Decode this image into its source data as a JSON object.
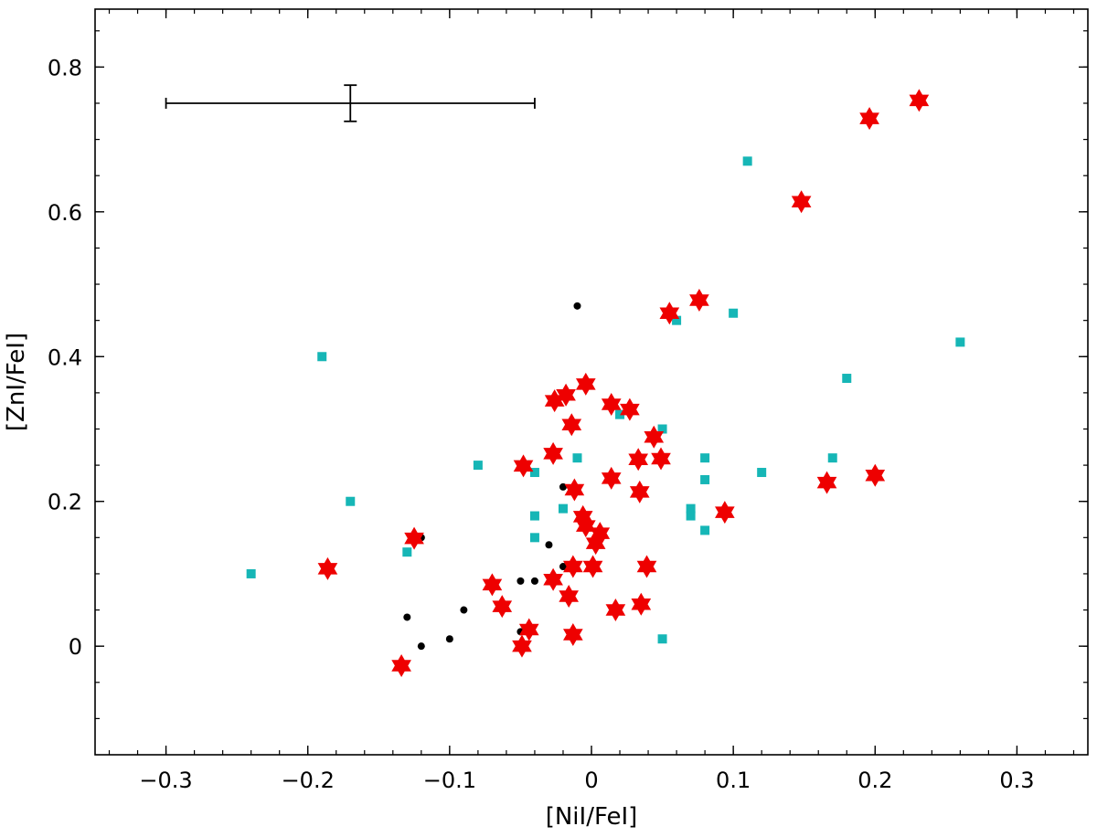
{
  "chart_data": {
    "type": "scatter",
    "title": "",
    "xlabel": "[NiI/FeI]",
    "ylabel": "[ZnI/FeI]",
    "xlim": [
      -0.35,
      0.35
    ],
    "ylim": [
      -0.15,
      0.88
    ],
    "xticks": [
      -0.3,
      -0.2,
      -0.1,
      0,
      0.1,
      0.2,
      0.3
    ],
    "xtick_labels": [
      "−0.3",
      "−0.2",
      "−0.1",
      "0",
      "0.1",
      "0.2",
      "0.3"
    ],
    "yticks": [
      0,
      0.2,
      0.4,
      0.6,
      0.8
    ],
    "ytick_labels": [
      "0",
      "0.2",
      "0.4",
      "0.6",
      "0.8"
    ],
    "x_minor_step": 0.02,
    "y_minor_step": 0.05,
    "grid": false,
    "error_bar": {
      "x": -0.17,
      "y": 0.75,
      "xerr_minus": 0.13,
      "xerr_plus": 0.13,
      "yerr": 0.025
    },
    "series": [
      {
        "marker": "circle",
        "color": "#000000",
        "points": [
          [
            -0.12,
            0.15
          ],
          [
            -0.13,
            0.04
          ],
          [
            -0.12,
            0.0
          ],
          [
            -0.1,
            0.01
          ],
          [
            -0.09,
            0.05
          ],
          [
            -0.05,
            0.09
          ],
          [
            -0.04,
            0.09
          ],
          [
            -0.05,
            0.02
          ],
          [
            -0.03,
            0.14
          ],
          [
            -0.02,
            0.11
          ],
          [
            -0.02,
            0.22
          ],
          [
            -0.01,
            0.47
          ]
        ]
      },
      {
        "marker": "square",
        "color": "#16b6b6",
        "points": [
          [
            -0.24,
            0.1
          ],
          [
            -0.19,
            0.4
          ],
          [
            -0.17,
            0.2
          ],
          [
            -0.13,
            0.13
          ],
          [
            -0.08,
            0.25
          ],
          [
            -0.04,
            0.24
          ],
          [
            -0.04,
            0.18
          ],
          [
            -0.04,
            0.15
          ],
          [
            -0.02,
            0.19
          ],
          [
            -0.01,
            0.26
          ],
          [
            0.02,
            0.32
          ],
          [
            0.05,
            0.3
          ],
          [
            0.05,
            0.01
          ],
          [
            0.06,
            0.45
          ],
          [
            0.07,
            0.19
          ],
          [
            0.07,
            0.18
          ],
          [
            0.08,
            0.26
          ],
          [
            0.08,
            0.23
          ],
          [
            0.08,
            0.16
          ],
          [
            0.1,
            0.46
          ],
          [
            0.11,
            0.67
          ],
          [
            0.12,
            0.24
          ],
          [
            0.17,
            0.26
          ],
          [
            0.18,
            0.37
          ],
          [
            0.26,
            0.42
          ]
        ]
      },
      {
        "marker": "star",
        "color": "#ee0000",
        "points": [
          [
            0.231,
            0.754
          ],
          [
            0.196,
            0.729
          ],
          [
            0.148,
            0.614
          ],
          [
            0.076,
            0.478
          ],
          [
            0.055,
            0.46
          ],
          [
            -0.004,
            0.362
          ],
          [
            -0.018,
            0.347
          ],
          [
            -0.026,
            0.339
          ],
          [
            0.014,
            0.334
          ],
          [
            0.027,
            0.327
          ],
          [
            -0.014,
            0.306
          ],
          [
            0.044,
            0.289
          ],
          [
            -0.027,
            0.266
          ],
          [
            0.033,
            0.258
          ],
          [
            0.049,
            0.259
          ],
          [
            -0.048,
            0.249
          ],
          [
            0.014,
            0.232
          ],
          [
            0.166,
            0.226
          ],
          [
            0.2,
            0.236
          ],
          [
            -0.012,
            0.216
          ],
          [
            0.034,
            0.213
          ],
          [
            0.094,
            0.185
          ],
          [
            -0.006,
            0.179
          ],
          [
            -0.004,
            0.166
          ],
          [
            0.006,
            0.156
          ],
          [
            0.003,
            0.142
          ],
          [
            -0.125,
            0.149
          ],
          [
            -0.186,
            0.107
          ],
          [
            -0.013,
            0.11
          ],
          [
            0.001,
            0.11
          ],
          [
            0.039,
            0.11
          ],
          [
            -0.07,
            0.085
          ],
          [
            -0.027,
            0.092
          ],
          [
            -0.016,
            0.069
          ],
          [
            -0.063,
            0.055
          ],
          [
            0.017,
            0.05
          ],
          [
            0.035,
            0.058
          ],
          [
            -0.044,
            0.023
          ],
          [
            -0.013,
            0.016
          ],
          [
            -0.049,
            0.0
          ],
          [
            -0.134,
            -0.027
          ]
        ]
      }
    ]
  }
}
